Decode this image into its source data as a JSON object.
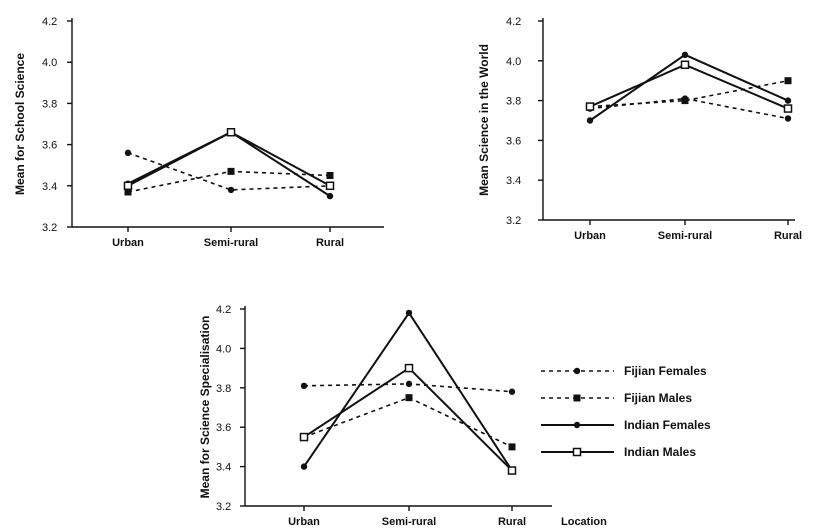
{
  "chart_data": [
    {
      "type": "line",
      "ylabel": "Mean for School Science",
      "categories": [
        "Urban",
        "Semi-rural",
        "Rural"
      ],
      "yticks": [
        "3.2",
        "3.4",
        "3.6",
        "3.8",
        "4.0",
        "4.2"
      ],
      "ylim": [
        3.2,
        4.2
      ],
      "series": [
        {
          "name": "Fijian Females",
          "values": [
            3.56,
            3.38,
            3.4
          ]
        },
        {
          "name": "Fijian Males",
          "values": [
            3.37,
            3.47,
            3.45
          ]
        },
        {
          "name": "Indian Females",
          "values": [
            3.41,
            3.66,
            3.35
          ]
        },
        {
          "name": "Indian Males",
          "values": [
            3.4,
            3.66,
            3.4
          ]
        }
      ]
    },
    {
      "type": "line",
      "ylabel": "Mean Science in the World",
      "categories": [
        "Urban",
        "Semi-rural",
        "Rural"
      ],
      "yticks": [
        "3.2",
        "3.4",
        "3.6",
        "3.8",
        "4.0",
        "4.2"
      ],
      "ylim": [
        3.2,
        4.2
      ],
      "series": [
        {
          "name": "Fijian Females",
          "values": [
            3.76,
            3.81,
            3.71
          ]
        },
        {
          "name": "Fijian Males",
          "values": [
            3.77,
            3.8,
            3.9
          ]
        },
        {
          "name": "Indian Females",
          "values": [
            3.7,
            4.03,
            3.8
          ]
        },
        {
          "name": "Indian Males",
          "values": [
            3.77,
            3.98,
            3.76
          ]
        }
      ]
    },
    {
      "type": "line",
      "ylabel": "Mean for Science Specialisation",
      "xlabel": "Location",
      "categories": [
        "Urban",
        "Semi-rural",
        "Rural"
      ],
      "yticks": [
        "3.2",
        "3.4",
        "3.6",
        "3.8",
        "4.0",
        "4.2"
      ],
      "ylim": [
        3.2,
        4.2
      ],
      "series": [
        {
          "name": "Fijian Females",
          "values": [
            3.81,
            3.82,
            3.78
          ]
        },
        {
          "name": "Fijian Males",
          "values": [
            3.55,
            3.75,
            3.5
          ]
        },
        {
          "name": "Indian Females",
          "values": [
            3.4,
            4.18,
            3.38
          ]
        },
        {
          "name": "Indian Males",
          "values": [
            3.55,
            3.9,
            3.38
          ]
        }
      ]
    }
  ],
  "legend": {
    "entries": [
      "Fijian Females",
      "Fijian Males",
      "Indian Females",
      "Indian Males"
    ]
  },
  "styles": {
    "Fijian Females": {
      "dash": "4,4",
      "marker": "dot"
    },
    "Fijian Males": {
      "dash": "4,4",
      "marker": "square-filled"
    },
    "Indian Females": {
      "dash": "",
      "marker": "dot"
    },
    "Indian Males": {
      "dash": "",
      "marker": "square-open"
    }
  },
  "color": "#111111"
}
